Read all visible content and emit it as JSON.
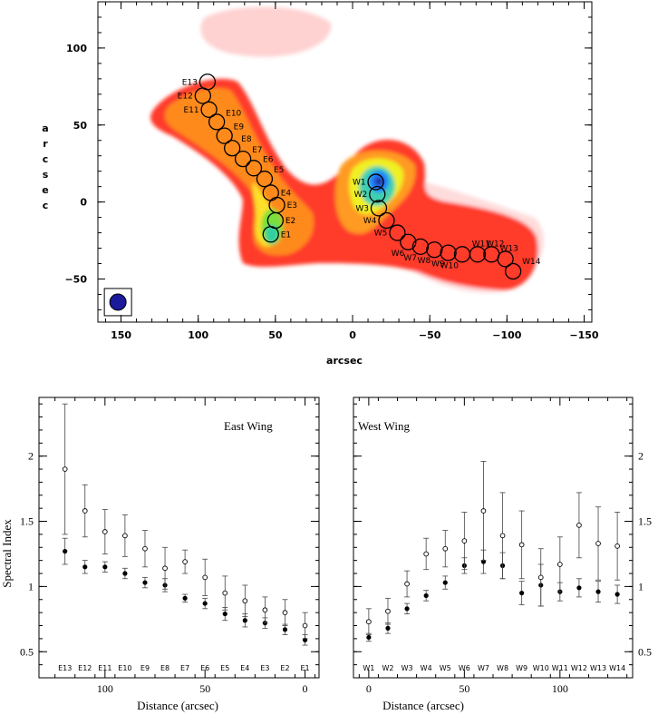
{
  "chart_data": [
    {
      "type": "heatmap",
      "xlabel": "arcsec",
      "ylabel": "arcsec",
      "xlim": [
        165,
        -155
      ],
      "ylim": [
        -78,
        130
      ],
      "xticks": [
        150,
        100,
        50,
        0,
        -50,
        -100,
        -150
      ],
      "yticks": [
        100,
        50,
        0,
        -50
      ],
      "grid": false,
      "beam": {
        "x": 152,
        "y": -65
      },
      "regions": [
        {
          "label": "E13",
          "x": 94,
          "y": 78
        },
        {
          "label": "E12",
          "x": 97,
          "y": 69
        },
        {
          "label": "E11",
          "x": 93,
          "y": 60
        },
        {
          "label": "E10",
          "x": 88,
          "y": 52
        },
        {
          "label": "E9",
          "x": 83,
          "y": 43
        },
        {
          "label": "E8",
          "x": 78,
          "y": 35
        },
        {
          "label": "E7",
          "x": 71,
          "y": 28
        },
        {
          "label": "E6",
          "x": 64,
          "y": 22
        },
        {
          "label": "E5",
          "x": 57,
          "y": 15
        },
        {
          "label": "E4",
          "x": 53,
          "y": 6
        },
        {
          "label": "E3",
          "x": 49,
          "y": -2
        },
        {
          "label": "E2",
          "x": 50,
          "y": -12
        },
        {
          "label": "E1",
          "x": 53,
          "y": -21
        },
        {
          "label": "W1",
          "x": -15,
          "y": 13
        },
        {
          "label": "W2",
          "x": -16,
          "y": 5
        },
        {
          "label": "W3",
          "x": -17,
          "y": -4
        },
        {
          "label": "W4",
          "x": -22,
          "y": -12
        },
        {
          "label": "W5",
          "x": -29,
          "y": -20
        },
        {
          "label": "W6",
          "x": -36,
          "y": -26
        },
        {
          "label": "W7",
          "x": -44,
          "y": -29
        },
        {
          "label": "W8",
          "x": -53,
          "y": -31
        },
        {
          "label": "W9",
          "x": -62,
          "y": -33
        },
        {
          "label": "W10",
          "x": -71,
          "y": -34
        },
        {
          "label": "W11",
          "x": -81,
          "y": -34
        },
        {
          "label": "W12",
          "x": -90,
          "y": -34
        },
        {
          "label": "W13",
          "x": -99,
          "y": -37
        },
        {
          "label": "W14",
          "x": -104,
          "y": -45
        }
      ]
    },
    {
      "type": "scatter",
      "title": "East Wing",
      "xlabel": "Distance (arcsec)",
      "ylabel": "Spectral Index",
      "xlim": [
        133,
        -7
      ],
      "ylim": [
        0.3,
        2.45
      ],
      "xticks": [
        100,
        50,
        0
      ],
      "yticks": [
        0.5,
        1,
        1.5,
        2
      ],
      "labels": [
        "E13",
        "E12",
        "E11",
        "E10",
        "E9",
        "E8",
        "E7",
        "E6",
        "E5",
        "E4",
        "E3",
        "E2",
        "E1"
      ],
      "x": [
        120,
        110,
        100,
        90,
        80,
        70,
        60,
        50,
        40,
        30,
        20,
        10,
        0
      ],
      "series": [
        {
          "marker": "filled",
          "values": [
            1.27,
            1.15,
            1.15,
            1.1,
            1.03,
            1.01,
            0.91,
            0.87,
            0.79,
            0.74,
            0.72,
            0.67,
            0.59
          ],
          "err": [
            0.1,
            0.05,
            0.04,
            0.04,
            0.04,
            0.05,
            0.03,
            0.04,
            0.05,
            0.05,
            0.04,
            0.04,
            0.04
          ]
        },
        {
          "marker": "open",
          "values": [
            1.9,
            1.58,
            1.42,
            1.39,
            1.29,
            1.14,
            1.19,
            1.07,
            0.95,
            0.89,
            0.82,
            0.8,
            0.7
          ],
          "err": [
            0.5,
            0.2,
            0.17,
            0.16,
            0.14,
            0.16,
            0.09,
            0.14,
            0.13,
            0.12,
            0.1,
            0.1,
            0.1
          ]
        }
      ]
    },
    {
      "type": "scatter",
      "title": "West Wing",
      "xlabel": "Distance (arcsec)",
      "ylabel": "",
      "xlim": [
        -8,
        138
      ],
      "ylim": [
        0.3,
        2.45
      ],
      "xticks": [
        0,
        50,
        100
      ],
      "yticks": [
        0.5,
        1,
        1.5,
        2
      ],
      "labels": [
        "W1",
        "W2",
        "W3",
        "W4",
        "W5",
        "W6",
        "W7",
        "W8",
        "W9",
        "W10",
        "W11",
        "W12",
        "W13",
        "W14"
      ],
      "x": [
        0,
        10,
        20,
        30,
        40,
        50,
        60,
        70,
        80,
        90,
        100,
        110,
        120,
        130
      ],
      "series": [
        {
          "marker": "filled",
          "values": [
            0.61,
            0.68,
            0.83,
            0.93,
            1.03,
            1.16,
            1.19,
            1.16,
            0.95,
            1.01,
            0.96,
            0.99,
            0.96,
            0.94
          ],
          "err": [
            0.03,
            0.04,
            0.04,
            0.04,
            0.05,
            0.06,
            0.09,
            0.1,
            0.09,
            0.16,
            0.07,
            0.07,
            0.08,
            0.07
          ]
        },
        {
          "marker": "open",
          "values": [
            0.73,
            0.81,
            1.02,
            1.25,
            1.29,
            1.35,
            1.58,
            1.39,
            1.32,
            1.07,
            1.17,
            1.47,
            1.33,
            1.31
          ],
          "err": [
            0.1,
            0.1,
            0.1,
            0.12,
            0.14,
            0.22,
            0.38,
            0.33,
            0.26,
            0.22,
            0.21,
            0.25,
            0.28,
            0.26
          ]
        }
      ]
    }
  ]
}
